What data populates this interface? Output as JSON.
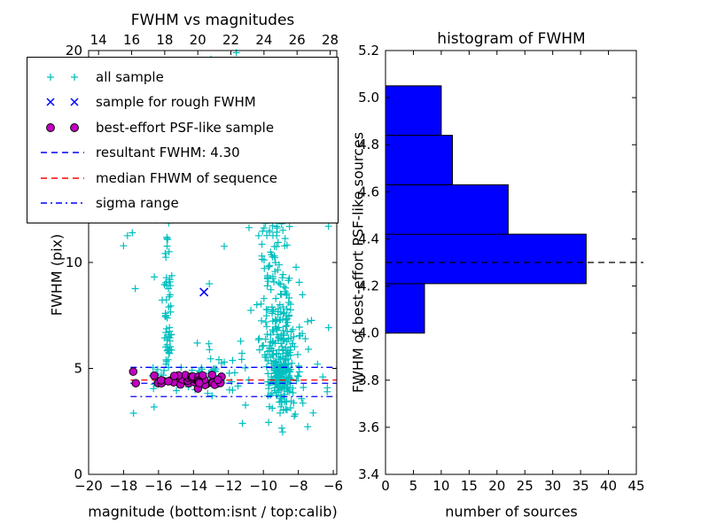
{
  "figure": {
    "background": "#ffffff"
  },
  "chart_data": [
    {
      "type": "scatter",
      "title": "FWHM vs magnitudes",
      "xlabel": "magnitude (bottom:isnt / top:calib)",
      "ylabel": "FWHM (pix)",
      "xlim": [
        -20,
        -5.8
      ],
      "ylim": [
        0,
        20
      ],
      "top_xlim": [
        13.4,
        28.4
      ],
      "grid": false,
      "legend_position": "upper left",
      "bottom_ticks": {
        "values": [
          -20,
          -18,
          -16,
          -14,
          -12,
          -10,
          -8,
          -6
        ],
        "labels": [
          "−20",
          "−18",
          "−16",
          "−14",
          "−12",
          "−10",
          "−8",
          "−6"
        ]
      },
      "top_ticks": {
        "values": [
          14,
          16,
          18,
          20,
          22,
          24,
          26,
          28
        ],
        "labels": [
          "14",
          "16",
          "18",
          "20",
          "22",
          "24",
          "26",
          "28"
        ]
      },
      "y_ticks": {
        "values": [
          0,
          5,
          10,
          15,
          20
        ],
        "labels": [
          "0",
          "5",
          "10",
          "15",
          "20"
        ]
      },
      "series": [
        {
          "name": "all sample",
          "marker": "plus",
          "color": "#00bfbf",
          "seed": 7,
          "clusters": [
            {
              "n": 170,
              "x": [
                "normal",
                -9.0,
                0.35
              ],
              "y": [
                "normal",
                4.7,
                0.8
              ]
            },
            {
              "n": 115,
              "x": [
                "normal",
                -9.35,
                0.5
              ],
              "y": [
                "uniform",
                5.5,
                12
              ]
            },
            {
              "n": 70,
              "x": [
                "normal",
                -8.6,
                0.45
              ],
              "y": [
                "normal",
                6.3,
                1.6
              ]
            },
            {
              "n": 48,
              "x": [
                "normal",
                -15.45,
                0.13
              ],
              "y": [
                "uniform",
                5.2,
                9.4
              ]
            },
            {
              "n": 8,
              "x": [
                "normal",
                -15.5,
                0.1
              ],
              "y": [
                "uniform",
                9.4,
                12
              ]
            },
            {
              "n": 48,
              "x": [
                "uniform",
                -16.4,
                -12.3
              ],
              "y": [
                "normal",
                4.55,
                0.3
              ]
            },
            {
              "n": 24,
              "x": [
                "uniform",
                -13.2,
                -10.6
              ],
              "y": [
                "uniform",
                3.6,
                6.6
              ]
            },
            {
              "n": 32,
              "x": [
                "uniform",
                -18.1,
                -6.2
              ],
              "y": [
                "uniform",
                2.2,
                13.2
              ]
            }
          ],
          "points": [
            [
              -13.0,
              19.6
            ],
            [
              -11.55,
              19.9
            ],
            [
              -10.4,
              13.2
            ],
            [
              -8.0,
              13.5
            ],
            [
              -7.0,
              12.1
            ],
            [
              -6.35,
              3.9
            ],
            [
              -7.15,
              2.9
            ],
            [
              -8.9,
              2.0
            ],
            [
              -9.7,
              2.45
            ],
            [
              -17.5,
              11.4
            ],
            [
              -16.1,
              12.0
            ],
            [
              -10.15,
              14.1
            ],
            [
              -9.9,
              15.0
            ],
            [
              -6.6,
              4.6
            ],
            [
              -6.9,
              5.2
            ],
            [
              -7.6,
              6.4
            ]
          ]
        },
        {
          "name": "sample for rough FWHM",
          "marker": "cross",
          "color": "#0000ff",
          "points": [
            [
              -13.4,
              8.6
            ]
          ]
        },
        {
          "name": "best-effort PSF-like sample",
          "marker": "circle",
          "color": "#bf00bf",
          "seed": 11,
          "clusters": [
            {
              "n": 42,
              "x": [
                "uniform",
                -16.35,
                -12.3
              ],
              "y": [
                "normal",
                4.45,
                0.17
              ]
            }
          ],
          "points": [
            [
              -17.45,
              4.85
            ],
            [
              -17.3,
              4.3
            ]
          ]
        }
      ],
      "hlines": [
        {
          "name": "resultant FWHM: 4.30",
          "y": 4.3,
          "color": "#0000ff",
          "dash": "dashed",
          "x_from": -17.6
        },
        {
          "name": "median FHWM of sequence",
          "y": 4.45,
          "color": "#ff0000",
          "dash": "dashed",
          "x_from": -17.6
        },
        {
          "name": "sigma range upper",
          "y": 5.05,
          "color": "#0000ff",
          "dash": "dashdot",
          "x_from": -17.6
        },
        {
          "name": "sigma range lower",
          "y": 3.67,
          "color": "#0000ff",
          "dash": "dashdot",
          "x_from": -17.6
        }
      ],
      "legend": [
        {
          "label": "all sample",
          "kind": "plus",
          "color": "#00bfbf"
        },
        {
          "label": "sample for rough FWHM",
          "kind": "cross",
          "color": "#0000ff"
        },
        {
          "label": "best-effort PSF-like sample",
          "kind": "circle",
          "color": "#bf00bf"
        },
        {
          "label": "resultant FWHM: 4.30",
          "kind": "dashed",
          "color": "#0000ff"
        },
        {
          "label": "median FHWM of sequence",
          "kind": "dashed",
          "color": "#ff0000"
        },
        {
          "label": "sigma range",
          "kind": "dashdot",
          "color": "#0000ff"
        }
      ]
    },
    {
      "type": "bar",
      "orientation": "horizontal",
      "title": "histogram of FWHM",
      "xlabel": "number of sources",
      "ylabel": "FWHM of best-effort PSF-like sources",
      "bin_edges": [
        4.0,
        4.21,
        4.42,
        4.63,
        4.84,
        5.05
      ],
      "values": [
        7,
        36,
        22,
        12,
        10
      ],
      "xlim": [
        0,
        45
      ],
      "ylim": [
        3.4,
        5.2
      ],
      "x_ticks": {
        "values": [
          0,
          5,
          10,
          15,
          20,
          25,
          30,
          35,
          40,
          45
        ],
        "labels": [
          "0",
          "5",
          "10",
          "15",
          "20",
          "25",
          "30",
          "35",
          "40",
          "45"
        ]
      },
      "y_ticks": {
        "values": [
          3.4,
          3.6,
          3.8,
          4.0,
          4.2,
          4.4,
          4.6,
          4.8,
          5.0,
          5.2
        ],
        "labels": [
          "3.4",
          "3.6",
          "3.8",
          "4.0",
          "4.2",
          "4.4",
          "4.6",
          "4.8",
          "5.0",
          "5.2"
        ]
      },
      "bar_color": "#0000ff",
      "edge_color": "#000000",
      "marker_line": {
        "y": 4.3,
        "color": "#000000",
        "dash": "dashed"
      }
    }
  ]
}
